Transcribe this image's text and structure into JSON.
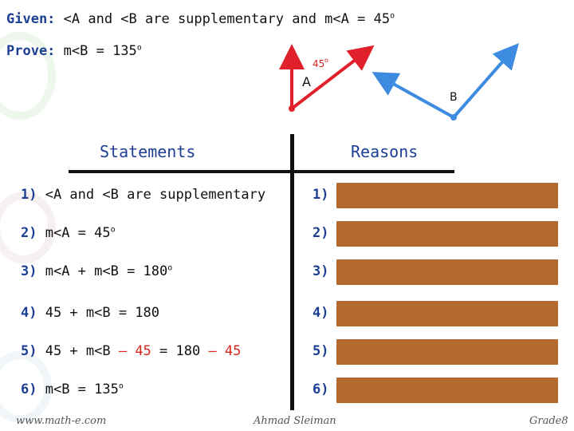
{
  "given": {
    "label": "Given:",
    "text": " <A and <B are supplementary and m<A = 45",
    "degree": "o"
  },
  "prove": {
    "label": "Prove:",
    "text": " m<B = 135",
    "degree": "o"
  },
  "diagram": {
    "angle_a_measure": "45",
    "angle_a_degree": "o",
    "label_a": "A",
    "label_b": "B",
    "ray_colors": {
      "angle_a": "#e0202a",
      "angle_b": "#3d8be0"
    }
  },
  "table": {
    "statements_header": "Statements",
    "reasons_header": "Reasons",
    "rows": [
      {
        "num": "1)",
        "parts": [
          {
            "text": " <A and <B are supplementary",
            "color": "default"
          }
        ],
        "reason_num": "1)"
      },
      {
        "num": "2)",
        "parts": [
          {
            "text": "  m<A = 45",
            "color": "default"
          }
        ],
        "degree": "o",
        "reason_num": "2)"
      },
      {
        "num": "3)",
        "parts": [
          {
            "text": "  m<A + m<B = 180",
            "color": "default"
          }
        ],
        "degree": "o",
        "reason_num": "3)"
      },
      {
        "num": "4)",
        "parts": [
          {
            "text": "  45 + m<B = 180",
            "color": "default"
          }
        ],
        "reason_num": "4)"
      },
      {
        "num": "5)",
        "parts": [
          {
            "text": "  45 + m<B ",
            "color": "default"
          },
          {
            "text": "– 45",
            "color": "red"
          },
          {
            "text": " = 180 ",
            "color": "default"
          },
          {
            "text": "– 45",
            "color": "red"
          }
        ],
        "reason_num": "5)"
      },
      {
        "num": "6)",
        "parts": [
          {
            "text": " m<B = 135",
            "color": "default"
          }
        ],
        "degree": "o",
        "reason_num": "6)"
      }
    ],
    "reason_box_color": "#b26a2e"
  },
  "footer": {
    "left": "www.math-e.com",
    "center": "Ahmad Sleiman",
    "right": "Grade8"
  }
}
